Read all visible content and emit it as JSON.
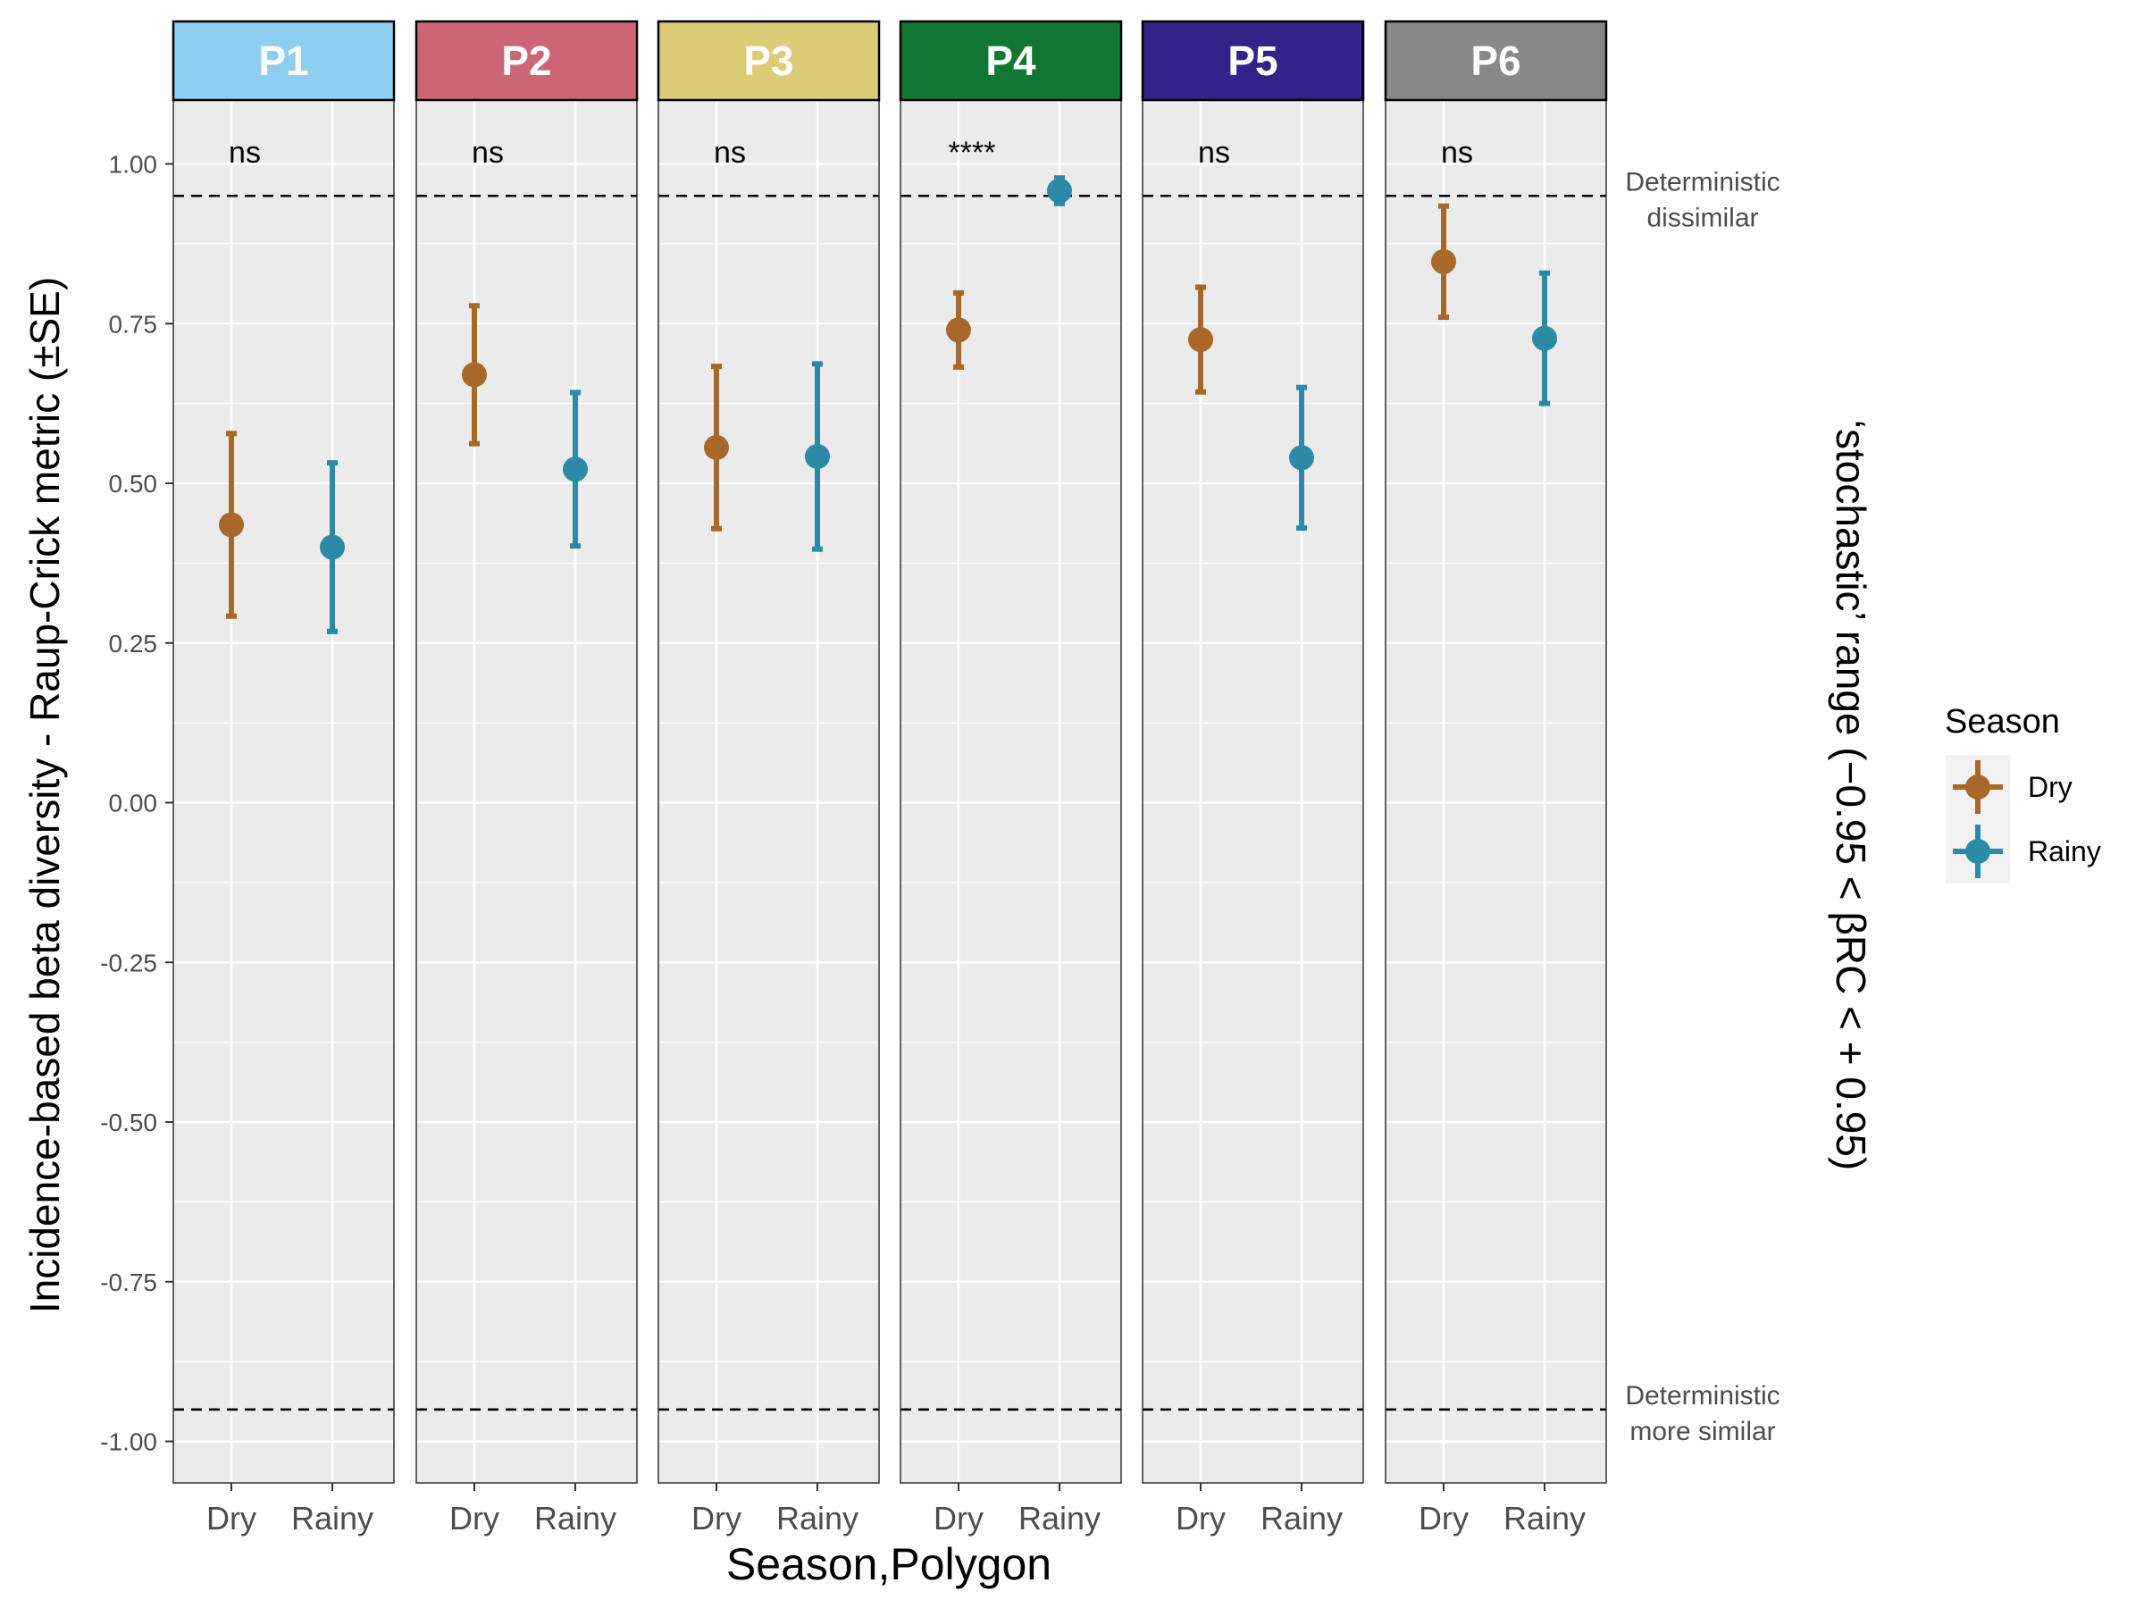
{
  "chart_data": {
    "type": "scatter",
    "subtype": "point-errorbar-faceted",
    "panels": [
      "P1",
      "P2",
      "P3",
      "P4",
      "P5",
      "P6"
    ],
    "panel_colors": [
      "#8ECEEE",
      "#CC6677",
      "#DDCC77",
      "#117733",
      "#332288",
      "#888888"
    ],
    "categories": [
      "Dry",
      "Rainy"
    ],
    "series": [
      {
        "name": "Dry",
        "color": "#A8682A",
        "values": [
          0.435,
          0.67,
          0.556,
          0.74,
          0.725,
          0.847
        ],
        "se": [
          0.143,
          0.108,
          0.127,
          0.058,
          0.082,
          0.087
        ]
      },
      {
        "name": "Rainy",
        "color": "#2B8AA6",
        "values": [
          0.4,
          0.522,
          0.542,
          0.958,
          0.54,
          0.727
        ],
        "se": [
          0.132,
          0.12,
          0.145,
          0.02,
          0.11,
          0.102
        ]
      }
    ],
    "significance": [
      "ns",
      "ns",
      "ns",
      "****",
      "ns",
      "ns"
    ],
    "reference_lines": [
      {
        "y": 0.95,
        "label_line1": "Deterministic",
        "label_line2": "dissimilar"
      },
      {
        "y": -0.95,
        "label_line1": "Deterministic",
        "label_line2": "more similar"
      }
    ],
    "yticks": [
      1.0,
      0.75,
      0.5,
      0.25,
      0.0,
      -0.25,
      -0.5,
      -0.75,
      -1.0
    ],
    "ytick_labels": [
      "1.00",
      "0.75",
      "0.50",
      "0.25",
      "0.00",
      "-0.25",
      "-0.50",
      "-0.75",
      "-1.00"
    ],
    "ylim": [
      -1.065,
      1.1
    ],
    "xlabel": "Season,Polygon",
    "ylabel": "Incidence-based beta diversity - Raup-Crick metric (±SE)",
    "right_label": "‘stochastic’ range (−0.95 < βRC < + 0.95)",
    "legend": {
      "title": "Season",
      "position": "right",
      "entries": [
        "Dry",
        "Rainy"
      ]
    },
    "grid": true
  }
}
